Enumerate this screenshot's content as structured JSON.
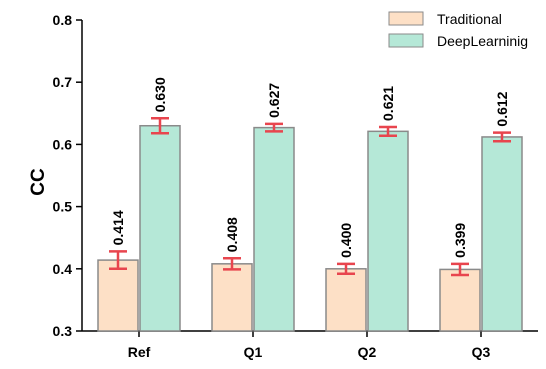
{
  "chart_data": {
    "type": "bar",
    "categories": [
      "Ref",
      "Q1",
      "Q2",
      "Q3"
    ],
    "series": [
      {
        "name": "Traditional",
        "values": [
          0.414,
          0.408,
          0.4,
          0.399
        ],
        "errors": [
          0.014,
          0.009,
          0.008,
          0.009
        ],
        "labels": [
          "0.414",
          "0.408",
          "0.400",
          "0.399"
        ],
        "color": "#fde0c6"
      },
      {
        "name": "DeepLearninig",
        "values": [
          0.63,
          0.627,
          0.621,
          0.612
        ],
        "errors": [
          0.012,
          0.006,
          0.007,
          0.007
        ],
        "labels": [
          "0.630",
          "0.627",
          "0.621",
          "0.612"
        ],
        "color": "#b5e8d7"
      }
    ],
    "title": "",
    "xlabel": "",
    "ylabel": "CC",
    "ylim": [
      0.3,
      0.8
    ],
    "yticks": [
      "0.3",
      "0.4",
      "0.5",
      "0.6",
      "0.7",
      "0.8"
    ],
    "error_bar_color": "#e8454e",
    "bar_edge_color": "#8a8a8a",
    "legend_position": "top-right",
    "grid": false
  }
}
